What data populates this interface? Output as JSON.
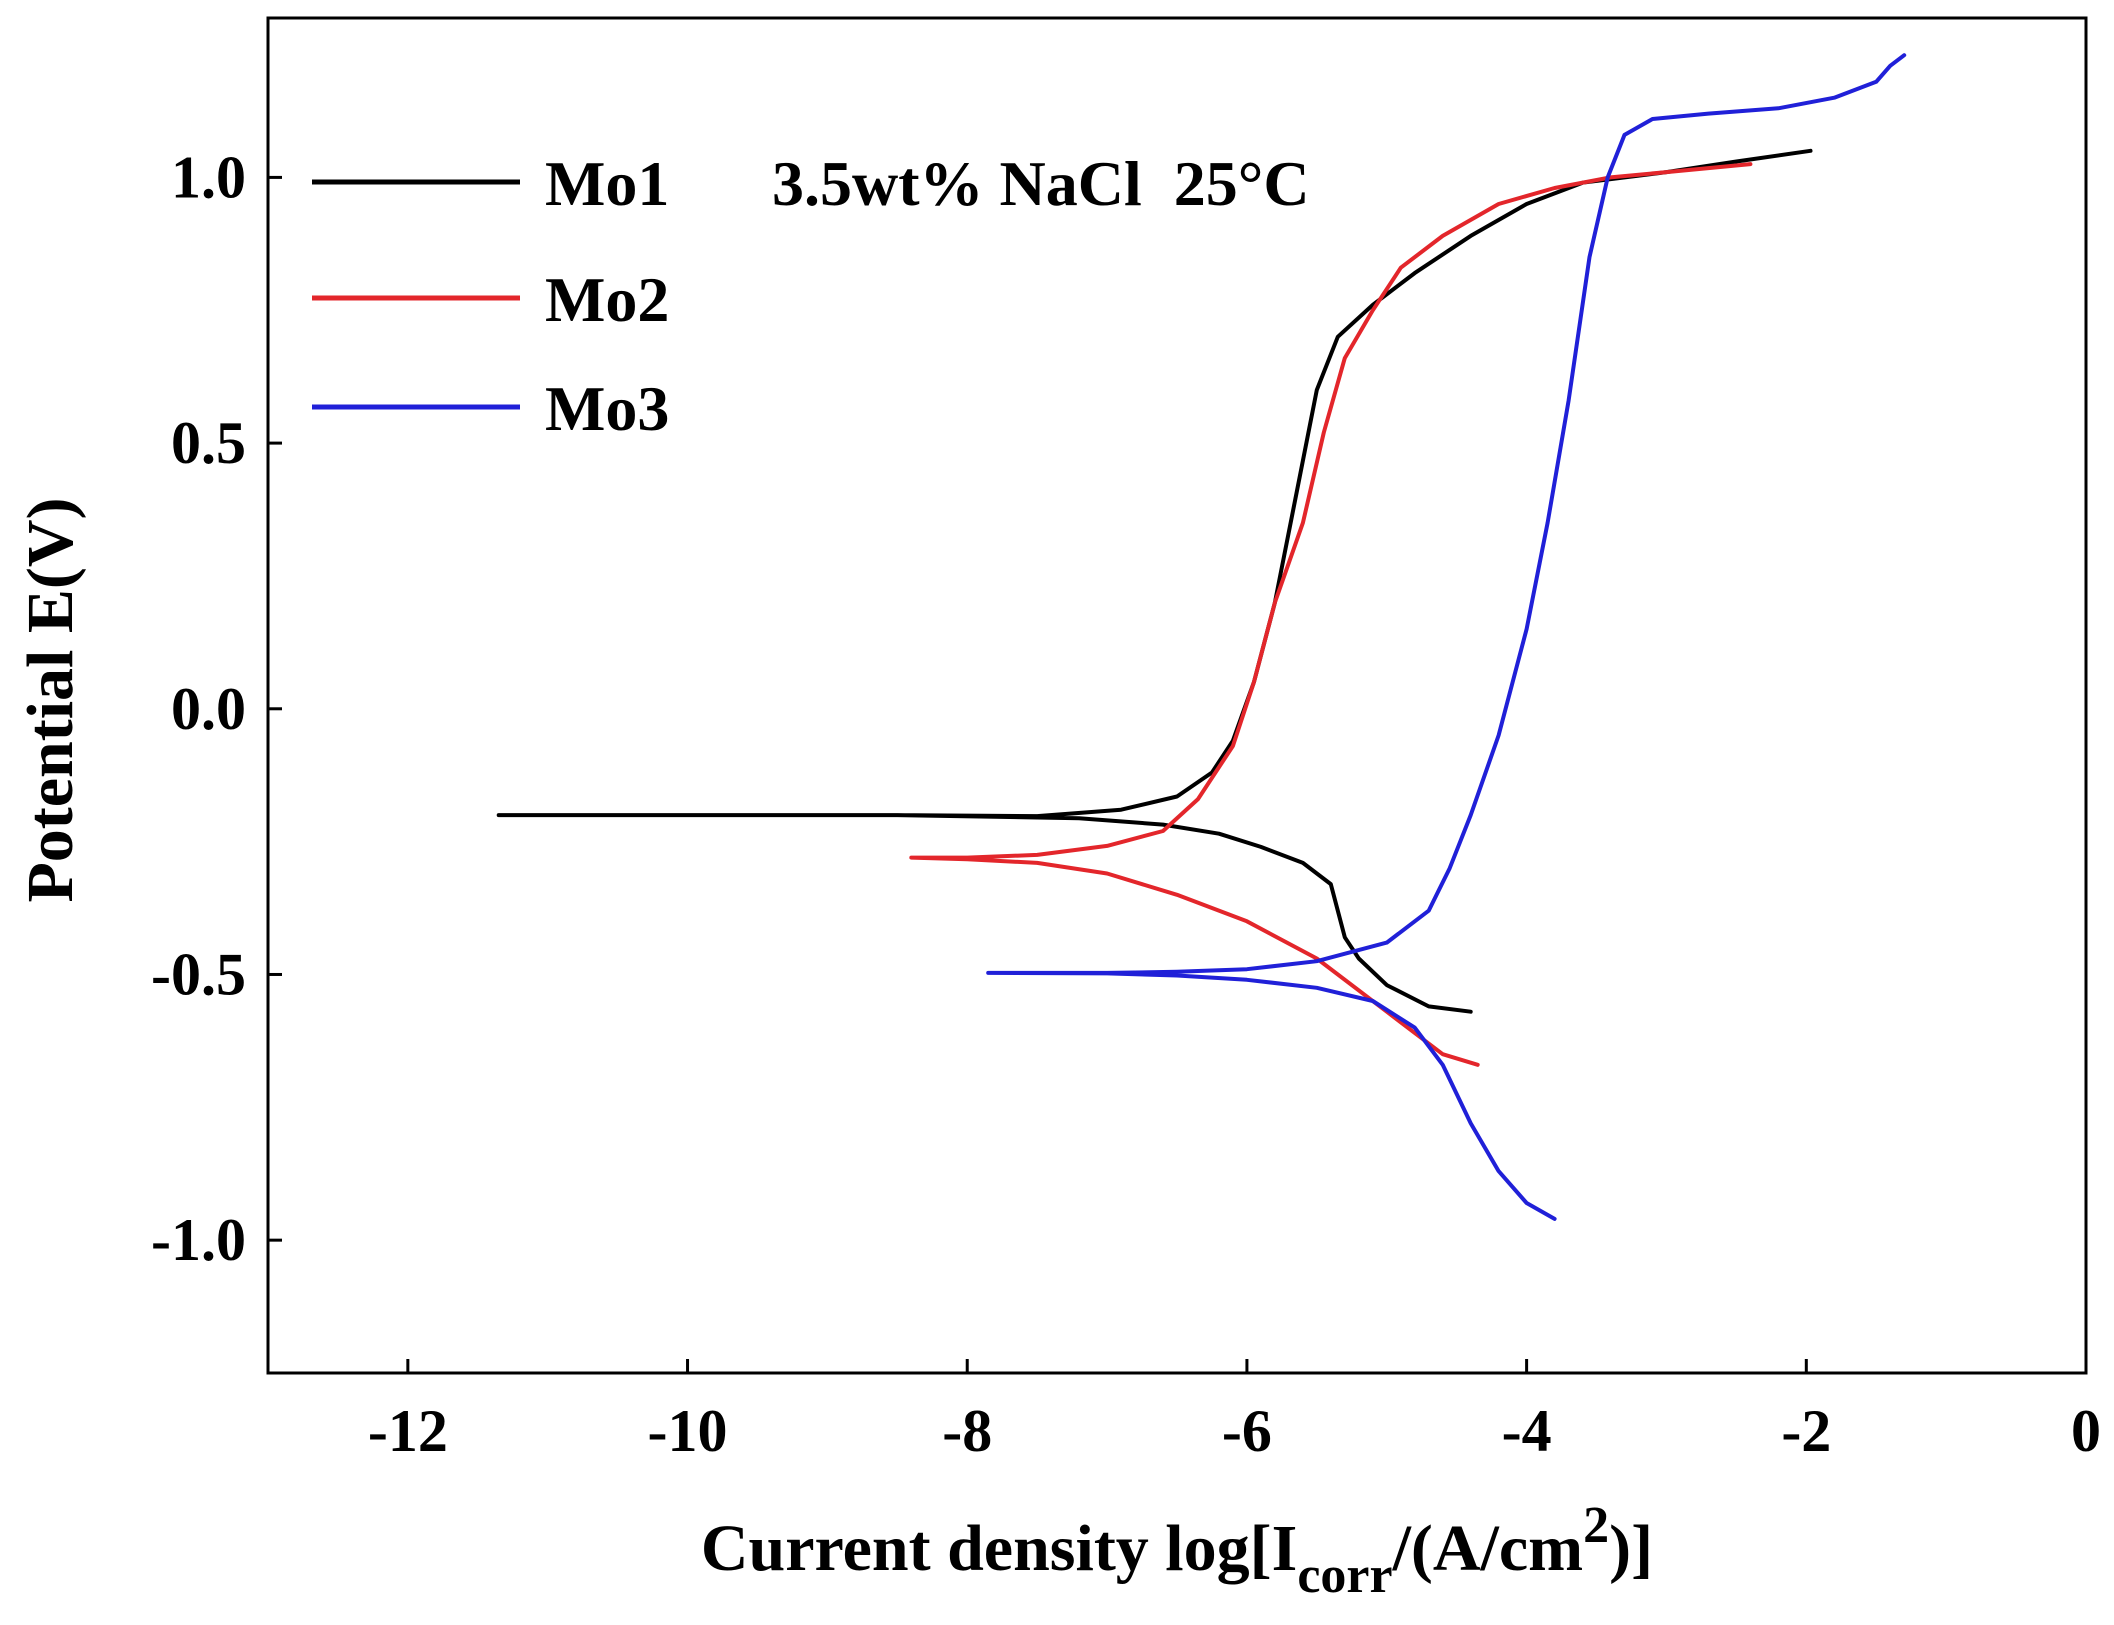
{
  "chart_data": {
    "type": "line",
    "title": "",
    "annotation": "3.5wt% NaCl  25°C",
    "xlabel": {
      "main": "Current density log[I",
      "sub": "corr",
      "mid": "/(A/cm",
      "sup": "2",
      "end": ")]"
    },
    "ylabel": "Potential E(V)",
    "xlim": [
      -13,
      0
    ],
    "ylim": [
      -1.25,
      1.3
    ],
    "xticks": [
      -12,
      -10,
      -8,
      -6,
      -4,
      -2,
      0
    ],
    "xtick_labels": [
      "-12",
      "-10",
      "-8",
      "-6",
      "-4",
      "-2",
      "0"
    ],
    "yticks": [
      -1.0,
      -0.5,
      0.0,
      0.5,
      1.0
    ],
    "ytick_labels": [
      "-1.0",
      "-0.5",
      "0.0",
      "0.5",
      "1.0"
    ],
    "grid": false,
    "legend_position": "top-left",
    "series": [
      {
        "name": "Mo1",
        "color": "#000000",
        "points": [
          [
            -4.4,
            -0.57
          ],
          [
            -4.7,
            -0.56
          ],
          [
            -5.0,
            -0.52
          ],
          [
            -5.2,
            -0.47
          ],
          [
            -5.3,
            -0.43
          ],
          [
            -5.4,
            -0.33
          ],
          [
            -5.6,
            -0.29
          ],
          [
            -5.9,
            -0.26
          ],
          [
            -6.2,
            -0.235
          ],
          [
            -6.6,
            -0.218
          ],
          [
            -7.2,
            -0.206
          ],
          [
            -8.5,
            -0.2
          ],
          [
            -10.0,
            -0.2
          ],
          [
            -11.35,
            -0.2
          ],
          [
            -10.0,
            -0.2
          ],
          [
            -8.5,
            -0.2
          ],
          [
            -7.5,
            -0.202
          ],
          [
            -6.9,
            -0.19
          ],
          [
            -6.5,
            -0.165
          ],
          [
            -6.25,
            -0.12
          ],
          [
            -6.1,
            -0.06
          ],
          [
            -5.95,
            0.05
          ],
          [
            -5.8,
            0.2
          ],
          [
            -5.65,
            0.4
          ],
          [
            -5.5,
            0.6
          ],
          [
            -5.35,
            0.7
          ],
          [
            -5.1,
            0.76
          ],
          [
            -4.8,
            0.82
          ],
          [
            -4.4,
            0.89
          ],
          [
            -4.0,
            0.95
          ],
          [
            -3.6,
            0.99
          ],
          [
            -3.0,
            1.01
          ],
          [
            -2.5,
            1.03
          ],
          [
            -1.97,
            1.05
          ]
        ]
      },
      {
        "name": "Mo2",
        "color": "#e3262b",
        "points": [
          [
            -4.35,
            -0.67
          ],
          [
            -4.6,
            -0.65
          ],
          [
            -5.0,
            -0.57
          ],
          [
            -5.5,
            -0.47
          ],
          [
            -6.0,
            -0.4
          ],
          [
            -6.5,
            -0.35
          ],
          [
            -7.0,
            -0.31
          ],
          [
            -7.5,
            -0.29
          ],
          [
            -8.0,
            -0.283
          ],
          [
            -8.4,
            -0.28
          ],
          [
            -8.0,
            -0.28
          ],
          [
            -7.5,
            -0.275
          ],
          [
            -7.0,
            -0.258
          ],
          [
            -6.6,
            -0.23
          ],
          [
            -6.35,
            -0.17
          ],
          [
            -6.1,
            -0.07
          ],
          [
            -5.95,
            0.05
          ],
          [
            -5.8,
            0.2
          ],
          [
            -5.6,
            0.35
          ],
          [
            -5.45,
            0.52
          ],
          [
            -5.3,
            0.66
          ],
          [
            -5.1,
            0.75
          ],
          [
            -4.9,
            0.83
          ],
          [
            -4.6,
            0.89
          ],
          [
            -4.2,
            0.95
          ],
          [
            -3.8,
            0.98
          ],
          [
            -3.4,
            1.0
          ],
          [
            -3.0,
            1.01
          ],
          [
            -2.4,
            1.025
          ]
        ]
      },
      {
        "name": "Mo3",
        "color": "#2020d8",
        "points": [
          [
            -3.8,
            -0.96
          ],
          [
            -4.0,
            -0.93
          ],
          [
            -4.2,
            -0.87
          ],
          [
            -4.4,
            -0.78
          ],
          [
            -4.6,
            -0.67
          ],
          [
            -4.8,
            -0.6
          ],
          [
            -5.1,
            -0.55
          ],
          [
            -5.5,
            -0.525
          ],
          [
            -6.0,
            -0.51
          ],
          [
            -6.5,
            -0.502
          ],
          [
            -7.0,
            -0.498
          ],
          [
            -7.85,
            -0.497
          ],
          [
            -7.0,
            -0.497
          ],
          [
            -6.5,
            -0.495
          ],
          [
            -6.0,
            -0.49
          ],
          [
            -5.5,
            -0.475
          ],
          [
            -5.0,
            -0.44
          ],
          [
            -4.7,
            -0.38
          ],
          [
            -4.55,
            -0.3
          ],
          [
            -4.4,
            -0.2
          ],
          [
            -4.2,
            -0.05
          ],
          [
            -4.0,
            0.15
          ],
          [
            -3.85,
            0.35
          ],
          [
            -3.7,
            0.58
          ],
          [
            -3.55,
            0.85
          ],
          [
            -3.42,
            1.0
          ],
          [
            -3.3,
            1.08
          ],
          [
            -3.1,
            1.11
          ],
          [
            -2.7,
            1.12
          ],
          [
            -2.2,
            1.13
          ],
          [
            -1.8,
            1.15
          ],
          [
            -1.5,
            1.18
          ],
          [
            -1.4,
            1.21
          ],
          [
            -1.3,
            1.23
          ]
        ]
      }
    ]
  }
}
